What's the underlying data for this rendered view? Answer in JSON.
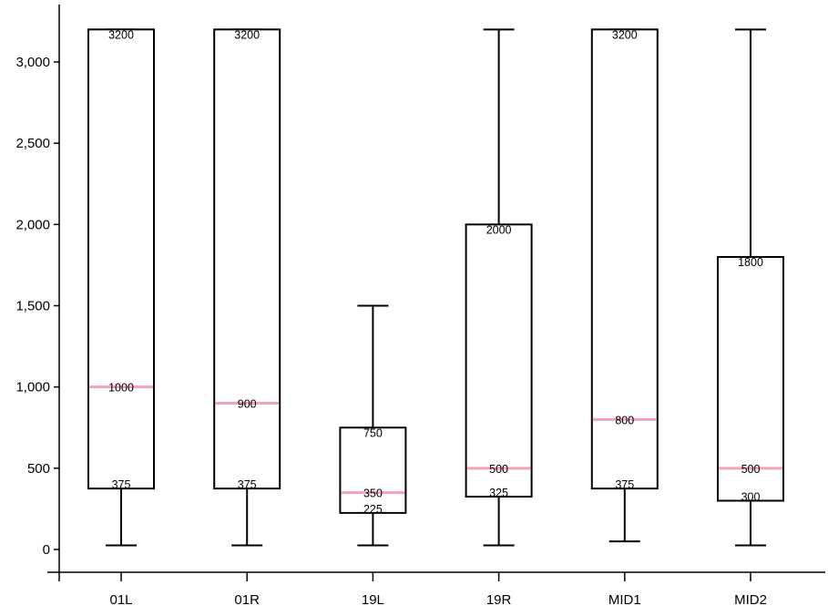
{
  "chart_data": {
    "type": "box",
    "title": "",
    "xlabel": "",
    "ylabel": "",
    "ylim": [
      -150,
      3350
    ],
    "yticks": [
      0,
      500,
      1000,
      1500,
      2000,
      2500,
      3000
    ],
    "ytick_labels": [
      "0",
      "500",
      "1,000",
      "1,500",
      "2,000",
      "2,500",
      "3,000"
    ],
    "grid": false,
    "median_color": "#f4a3b4",
    "box_color": "#000000",
    "categories": [
      "01L",
      "01R",
      "19L",
      "19R",
      "MID1",
      "MID2"
    ],
    "boxes": [
      {
        "category": "01L",
        "min": 25,
        "q1": 375,
        "median": 1000,
        "q3": 3200,
        "max": 3200,
        "labels": {
          "q1": "375",
          "median": "1000",
          "q3": "3200"
        }
      },
      {
        "category": "01R",
        "min": 25,
        "q1": 375,
        "median": 900,
        "q3": 3200,
        "max": 3200,
        "labels": {
          "q1": "375",
          "median": "900",
          "q3": "3200"
        }
      },
      {
        "category": "19L",
        "min": 25,
        "q1": 225,
        "median": 350,
        "q3": 750,
        "max": 1500,
        "labels": {
          "q1": "225",
          "median": "350",
          "q3": "750"
        }
      },
      {
        "category": "19R",
        "min": 25,
        "q1": 325,
        "median": 500,
        "q3": 2000,
        "max": 3200,
        "labels": {
          "q1": "325",
          "median": "500",
          "q3": "2000"
        }
      },
      {
        "category": "MID1",
        "min": 50,
        "q1": 375,
        "median": 800,
        "q3": 3200,
        "max": 3200,
        "labels": {
          "q1": "375",
          "median": "800",
          "q3": "3200"
        }
      },
      {
        "category": "MID2",
        "min": 25,
        "q1": 300,
        "median": 500,
        "q3": 1800,
        "max": 3200,
        "labels": {
          "q1": "300",
          "median": "500",
          "q3": "1800"
        }
      }
    ]
  }
}
